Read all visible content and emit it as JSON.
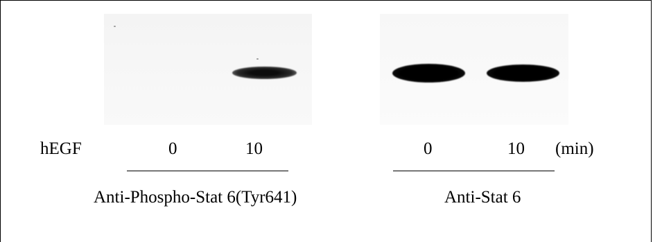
{
  "figure": {
    "row_label": "hEGF",
    "unit": "(min)",
    "left_panel": {
      "lanes": [
        "0",
        "10"
      ],
      "antibody": "Anti-Phospho-Stat 6(Tyr641)"
    },
    "right_panel": {
      "lanes": [
        "0",
        "10"
      ],
      "antibody": "Anti-Stat 6"
    }
  }
}
